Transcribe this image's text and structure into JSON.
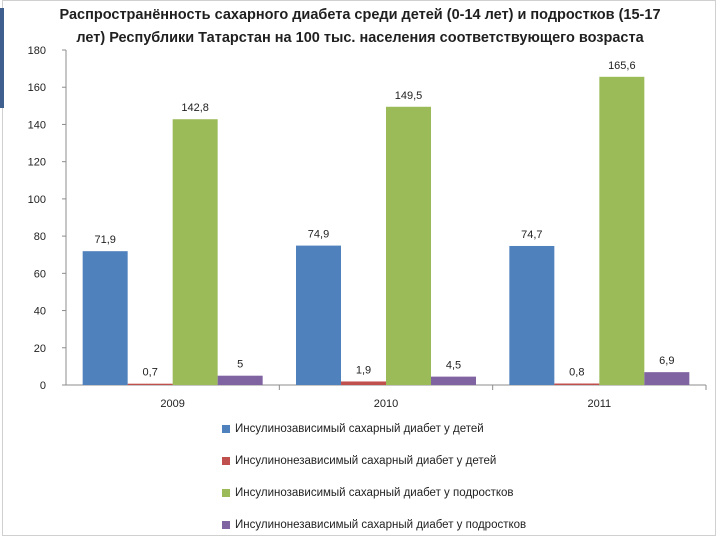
{
  "chart_data": {
    "type": "bar",
    "title": "Распространённость сахарного диабета среди детей (0-14 лет) и подростков (15-17 лет) Республики Татарстан на 100 тыс. населения соответствующего возраста",
    "title_lines": [
      "Распространённость сахарного диабета среди детей (0-14 лет) и подростков (15-17",
      "лет) Республики Татарстан на 100 тыс. населения соответствующего возраста"
    ],
    "categories": [
      "2009",
      "2010",
      "2011"
    ],
    "ylim": [
      0,
      180
    ],
    "yticks": [
      0,
      20,
      40,
      60,
      80,
      100,
      120,
      140,
      160,
      180
    ],
    "grid": false,
    "legend_position": "bottom",
    "series": [
      {
        "name": "Инсулинозависимый сахарный диабет у детей",
        "color": "#4f81bd",
        "values": [
          71.9,
          74.9,
          74.7
        ],
        "labels": [
          "71,9",
          "74,9",
          "74,7"
        ]
      },
      {
        "name": "Инсулинонезависимый сахарный диабет у детей",
        "color": "#c0504d",
        "values": [
          0.7,
          1.9,
          0.8
        ],
        "labels": [
          "0,7",
          "1,9",
          "0,8"
        ]
      },
      {
        "name": "Инсулинозависимый сахарный диабет у подростков",
        "color": "#9bbb59",
        "values": [
          142.8,
          149.5,
          165.6
        ],
        "labels": [
          "142,8",
          "149,5",
          "165,6"
        ]
      },
      {
        "name": "Инсулинонезависимый сахарный диабет у подростков",
        "color": "#8064a2",
        "values": [
          5,
          4.5,
          6.9
        ],
        "labels": [
          "5",
          "4,5",
          "6,9"
        ]
      }
    ]
  }
}
